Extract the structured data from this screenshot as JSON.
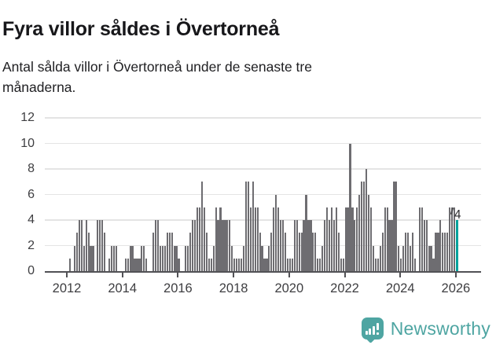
{
  "header": {
    "title": "Fyra villor såldes i Övertorneå",
    "subtitle_lines": {
      "0": "Antal sålda villor i Övertorneå under de senaste tre",
      "1": "månaderna."
    }
  },
  "colors": {
    "bar": "#6e6d71",
    "highlight": "#00a29c",
    "gridline": "#e4e4e4",
    "axis": "#515155",
    "logo_teal": "#4ea5a2"
  },
  "chart_data": {
    "type": "bar",
    "title": "Fyra villor såldes i Övertorneå",
    "subtitle": "Antal sålda villor i Övertorneå under de senaste tre månaderna.",
    "x_unit": "month",
    "x_start": "2012-01",
    "x_end": "2026-01",
    "ylim": [
      0,
      12
    ],
    "grid": true,
    "y_ticks": [
      0,
      2,
      4,
      6,
      8,
      10,
      12
    ],
    "x_tick_labels": [
      "2012",
      "2014",
      "2016",
      "2018",
      "2020",
      "2022",
      "2024",
      "2026"
    ],
    "values": [
      0,
      1,
      0,
      2,
      3,
      4,
      4,
      2,
      4,
      3,
      2,
      2,
      0,
      4,
      4,
      4,
      3,
      0,
      1,
      2,
      2,
      2,
      0,
      0,
      0,
      1,
      1,
      2,
      2,
      1,
      1,
      1,
      2,
      2,
      1,
      0,
      0,
      3,
      4,
      4,
      2,
      2,
      2,
      3,
      3,
      3,
      2,
      2,
      1,
      0,
      0,
      2,
      2,
      3,
      4,
      4,
      5,
      5,
      7,
      5,
      3,
      1,
      1,
      2,
      5,
      4,
      5,
      4,
      4,
      4,
      4,
      2,
      1,
      1,
      1,
      1,
      2,
      7,
      7,
      5,
      7,
      5,
      5,
      3,
      2,
      1,
      1,
      2,
      3,
      5,
      6,
      5,
      4,
      4,
      3,
      1,
      1,
      1,
      4,
      4,
      3,
      3,
      4,
      6,
      4,
      4,
      3,
      3,
      1,
      1,
      2,
      4,
      5,
      4,
      5,
      4,
      5,
      3,
      1,
      1,
      5,
      5,
      10,
      5,
      4,
      5,
      6,
      7,
      7,
      8,
      6,
      5,
      2,
      1,
      1,
      2,
      3,
      5,
      5,
      4,
      4,
      7,
      7,
      2,
      1,
      2,
      3,
      3,
      2,
      3,
      1,
      0,
      5,
      5,
      4,
      4,
      2,
      2,
      1,
      3,
      3,
      4,
      3,
      3,
      3,
      5,
      5,
      5,
      4
    ],
    "highlight_last": true,
    "annotation": {
      "label": "4"
    },
    "legend": null
  },
  "footer": {
    "logo_text": "Newsworthy"
  }
}
